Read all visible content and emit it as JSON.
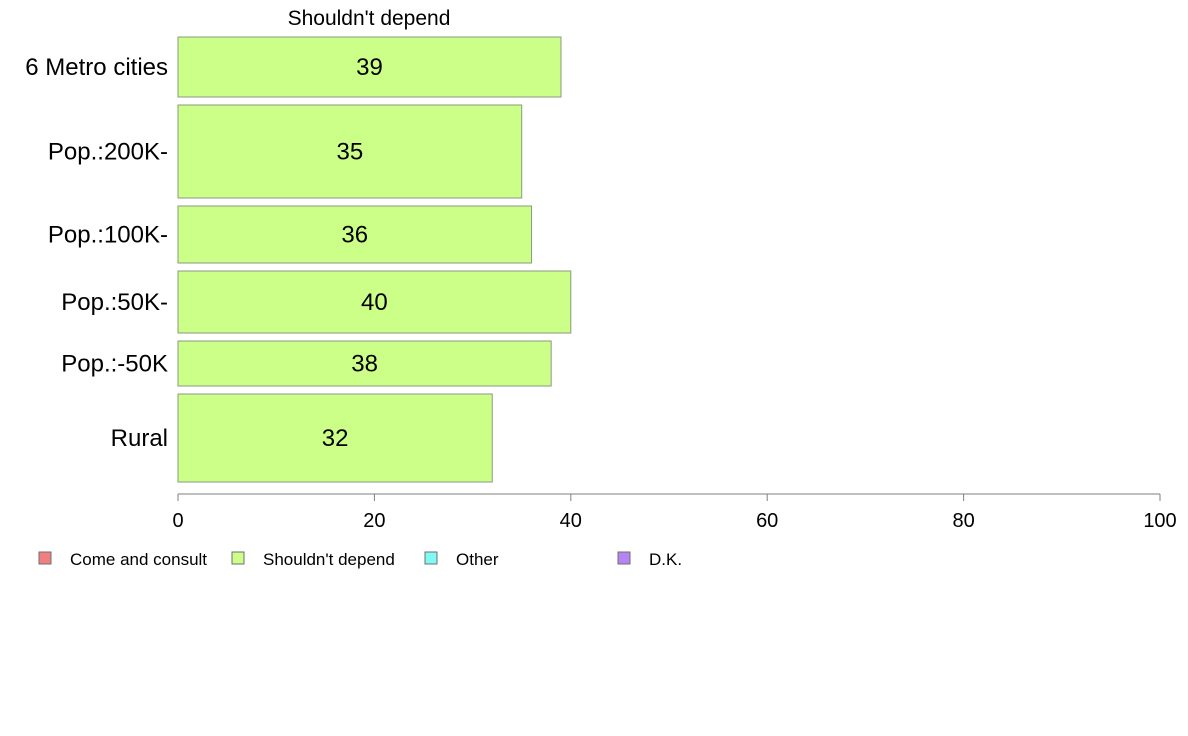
{
  "chart_data": {
    "type": "bar",
    "orientation": "horizontal",
    "title": "Shouldn't depend",
    "categories": [
      "6 Metro cities",
      "Pop.:200K-",
      "Pop.:100K-",
      "Pop.:50K-",
      "Pop.:-50K",
      "Rural"
    ],
    "series": [
      {
        "name": "Shouldn't depend",
        "values": [
          39,
          35,
          36,
          40,
          38,
          32
        ],
        "color": "#ccff88"
      }
    ],
    "xlim": [
      0,
      100
    ],
    "xticks": [
      "0",
      "20",
      "40",
      "60",
      "80",
      "100"
    ],
    "grid": false,
    "legend_position": "bottom-left",
    "legend": [
      {
        "label": "Come and consult",
        "color": "#f08080"
      },
      {
        "label": "Shouldn't depend",
        "color": "#ccff88"
      },
      {
        "label": "Other",
        "color": "#7ffaf4"
      },
      {
        "label": "D.K.",
        "color": "#b683f4"
      }
    ]
  }
}
